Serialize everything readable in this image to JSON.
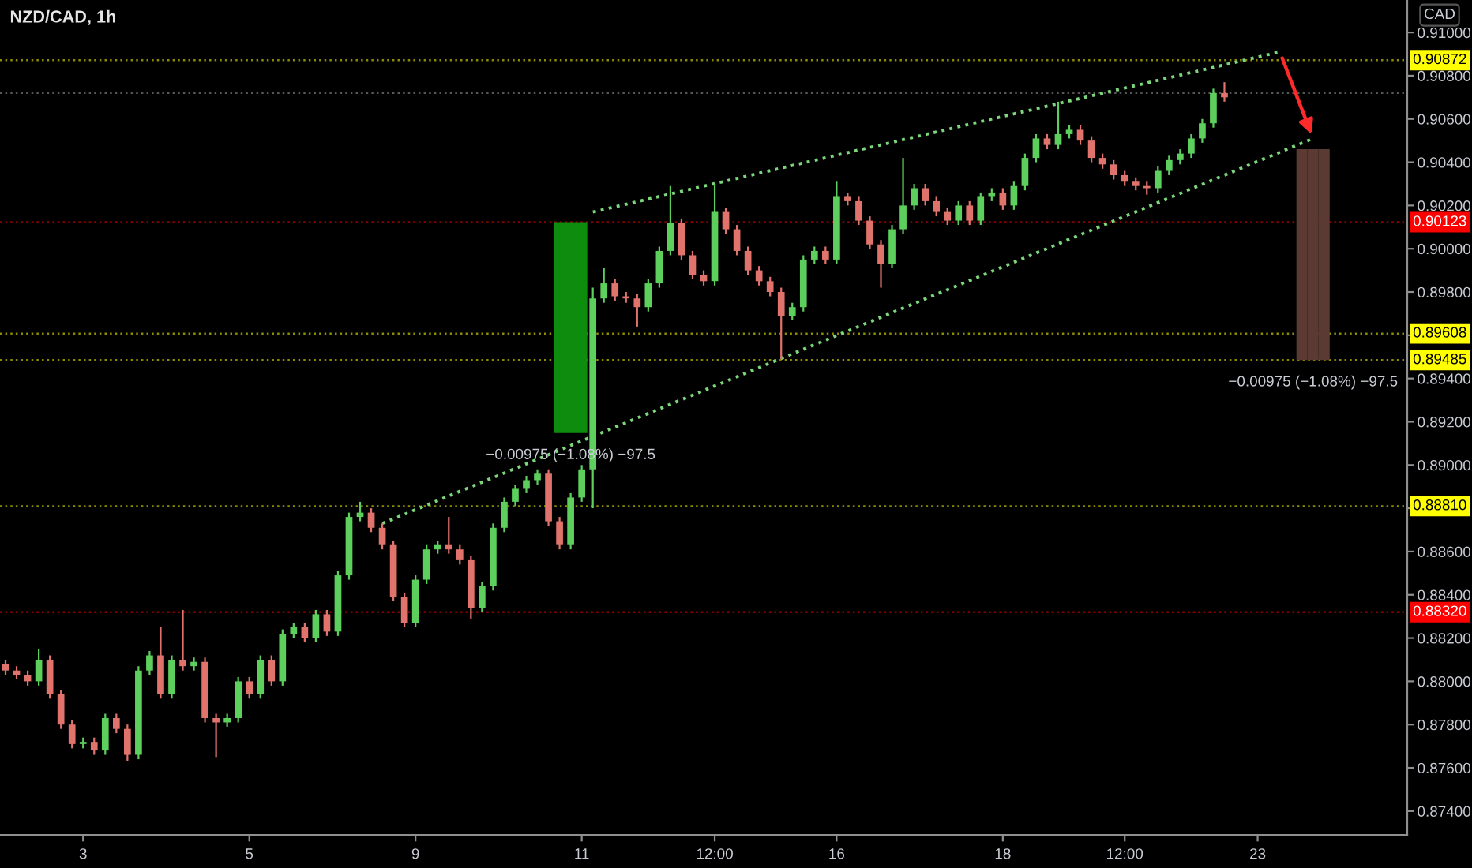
{
  "chart_data": {
    "type": "candlestick",
    "title": "NZD/CAD, 1h",
    "ylabel": "CAD",
    "categories": [
      null,
      null,
      null,
      null,
      null,
      null,
      null,
      "3",
      null,
      null,
      null,
      null,
      null,
      null,
      null,
      null,
      null,
      null,
      null,
      null,
      null,
      null,
      "5",
      null,
      null,
      null,
      null,
      null,
      null,
      null,
      null,
      null,
      null,
      null,
      null,
      null,
      null,
      "9",
      null,
      null,
      null,
      null,
      null,
      null,
      null,
      null,
      null,
      null,
      null,
      null,
      null,
      null,
      "11",
      null,
      null,
      null,
      null,
      null,
      null,
      null,
      null,
      null,
      null,
      null,
      "12:00",
      null,
      null,
      null,
      null,
      null,
      null,
      null,
      null,
      null,
      null,
      "16",
      null,
      null,
      null,
      null,
      null,
      null,
      null,
      null,
      null,
      null,
      null,
      null,
      null,
      null,
      "18",
      null,
      null,
      null,
      null,
      null,
      null,
      null,
      null,
      null,
      null,
      "12:00",
      null,
      null,
      null,
      null,
      null,
      null,
      null,
      null,
      null,
      null,
      null,
      "23",
      null,
      null,
      null,
      null,
      null,
      null,
      null,
      null,
      null,
      null,
      null,
      null,
      null
    ],
    "ylim": [
      0.8729,
      0.9115
    ],
    "yticks": [
      {
        "value": 0.874,
        "label": "0.87400"
      },
      {
        "value": 0.876,
        "label": "0.87600"
      },
      {
        "value": 0.878,
        "label": "0.87800"
      },
      {
        "value": 0.88,
        "label": "0.88000"
      },
      {
        "value": 0.882,
        "label": "0.88200"
      },
      {
        "value": 0.884,
        "label": "0.88400"
      },
      {
        "value": 0.886,
        "label": "0.88600"
      },
      {
        "value": 0.888,
        "label": null
      },
      {
        "value": 0.89,
        "label": "0.89000"
      },
      {
        "value": 0.892,
        "label": "0.89200"
      },
      {
        "value": 0.894,
        "label": "0.89400"
      },
      {
        "value": 0.896,
        "label": null
      },
      {
        "value": 0.898,
        "label": "0.89800"
      },
      {
        "value": 0.9,
        "label": "0.90000"
      },
      {
        "value": 0.902,
        "label": "0.90200"
      },
      {
        "value": 0.904,
        "label": "0.90400"
      },
      {
        "value": 0.906,
        "label": "0.90600"
      },
      {
        "value": 0.908,
        "label": "0.90800"
      },
      {
        "value": 0.91,
        "label": "0.91000"
      }
    ],
    "series": [
      {
        "ohlc": [
          [
            0.8808,
            0.881,
            0.8803,
            0.8805
          ],
          [
            0.8805,
            0.8807,
            0.8801,
            0.8803
          ],
          [
            0.8803,
            0.8805,
            0.8798,
            0.88
          ],
          [
            0.88,
            0.8815,
            0.8798,
            0.881
          ],
          [
            0.881,
            0.8812,
            0.8792,
            0.8794
          ],
          [
            0.8794,
            0.8796,
            0.8778,
            0.878
          ],
          [
            0.878,
            0.8782,
            0.8769,
            0.8771
          ],
          [
            0.8771,
            0.8774,
            0.8769,
            0.8772
          ],
          [
            0.8772,
            0.8774,
            0.8766,
            0.8768
          ],
          [
            0.8768,
            0.8785,
            0.8766,
            0.8783
          ],
          [
            0.8783,
            0.8785,
            0.8776,
            0.8778
          ],
          [
            0.8778,
            0.878,
            0.8763,
            0.8766
          ],
          [
            0.8766,
            0.8807,
            0.8764,
            0.8805
          ],
          [
            0.8805,
            0.8814,
            0.8803,
            0.8812
          ],
          [
            0.8812,
            0.8825,
            0.8792,
            0.8794
          ],
          [
            0.8794,
            0.8812,
            0.8792,
            0.881
          ],
          [
            0.881,
            0.8833,
            0.8805,
            0.8807
          ],
          [
            0.8807,
            0.8811,
            0.8805,
            0.8809
          ],
          [
            0.8809,
            0.8811,
            0.8781,
            0.8783
          ],
          [
            0.8783,
            0.8785,
            0.8765,
            0.8781
          ],
          [
            0.8781,
            0.8785,
            0.8779,
            0.8783
          ],
          [
            0.8783,
            0.8802,
            0.8781,
            0.88
          ],
          [
            0.88,
            0.8802,
            0.8792,
            0.8794
          ],
          [
            0.8794,
            0.8812,
            0.8792,
            0.881
          ],
          [
            0.881,
            0.8812,
            0.8798,
            0.88
          ],
          [
            0.88,
            0.8824,
            0.8798,
            0.8822
          ],
          [
            0.8822,
            0.8827,
            0.882,
            0.8825
          ],
          [
            0.8825,
            0.8827,
            0.8818,
            0.882
          ],
          [
            0.882,
            0.8833,
            0.8818,
            0.8831
          ],
          [
            0.8831,
            0.8833,
            0.8821,
            0.8823
          ],
          [
            0.8823,
            0.8851,
            0.8821,
            0.8849
          ],
          [
            0.8849,
            0.8878,
            0.8847,
            0.8876
          ],
          [
            0.8876,
            0.8883,
            0.8874,
            0.8878
          ],
          [
            0.8878,
            0.888,
            0.8869,
            0.8871
          ],
          [
            0.8871,
            0.8873,
            0.8861,
            0.8863
          ],
          [
            0.8863,
            0.8865,
            0.8837,
            0.8839
          ],
          [
            0.8839,
            0.8841,
            0.8825,
            0.8827
          ],
          [
            0.8827,
            0.8849,
            0.8825,
            0.8847
          ],
          [
            0.8847,
            0.8863,
            0.8845,
            0.8861
          ],
          [
            0.8861,
            0.8865,
            0.8859,
            0.8863
          ],
          [
            0.8863,
            0.8876,
            0.8859,
            0.8861
          ],
          [
            0.8861,
            0.8863,
            0.8854,
            0.8856
          ],
          [
            0.8856,
            0.8858,
            0.8829,
            0.8834
          ],
          [
            0.8834,
            0.8846,
            0.8832,
            0.8844
          ],
          [
            0.8844,
            0.8873,
            0.8842,
            0.8871
          ],
          [
            0.8871,
            0.8885,
            0.8869,
            0.8883
          ],
          [
            0.8883,
            0.8891,
            0.8881,
            0.8889
          ],
          [
            0.8889,
            0.8895,
            0.8887,
            0.8893
          ],
          [
            0.8893,
            0.8898,
            0.8891,
            0.8896
          ],
          [
            0.8896,
            0.8898,
            0.8872,
            0.8874
          ],
          [
            0.8874,
            0.8876,
            0.8861,
            0.8863
          ],
          [
            0.8863,
            0.8887,
            0.8861,
            0.8885
          ],
          [
            0.8885,
            0.89,
            0.8883,
            0.8898
          ],
          [
            0.8898,
            0.8982,
            0.888,
            0.8977
          ],
          [
            0.8977,
            0.8991,
            0.8975,
            0.8984
          ],
          [
            0.8984,
            0.8986,
            0.8976,
            0.8978
          ],
          [
            0.8978,
            0.898,
            0.8975,
            0.8977
          ],
          [
            0.8977,
            0.8979,
            0.8964,
            0.8973
          ],
          [
            0.8973,
            0.8986,
            0.8971,
            0.8984
          ],
          [
            0.8984,
            0.9001,
            0.8982,
            0.8999
          ],
          [
            0.8999,
            0.9029,
            0.8997,
            0.9012
          ],
          [
            0.9012,
            0.9014,
            0.8995,
            0.8997
          ],
          [
            0.8997,
            0.8999,
            0.8986,
            0.8988
          ],
          [
            0.8988,
            0.899,
            0.8983,
            0.8985
          ],
          [
            0.8985,
            0.903,
            0.8983,
            0.9017
          ],
          [
            0.9017,
            0.9019,
            0.9007,
            0.9009
          ],
          [
            0.9009,
            0.9011,
            0.8997,
            0.8999
          ],
          [
            0.8999,
            0.9001,
            0.8988,
            0.899
          ],
          [
            0.899,
            0.8992,
            0.8983,
            0.8985
          ],
          [
            0.8985,
            0.8987,
            0.8978,
            0.898
          ],
          [
            0.898,
            0.8982,
            0.8949,
            0.8969
          ],
          [
            0.8969,
            0.8975,
            0.8967,
            0.8973
          ],
          [
            0.8973,
            0.8997,
            0.8971,
            0.8995
          ],
          [
            0.8995,
            0.9001,
            0.8993,
            0.8999
          ],
          [
            0.8999,
            0.9001,
            0.8993,
            0.8995
          ],
          [
            0.8995,
            0.9031,
            0.8993,
            0.9024
          ],
          [
            0.9024,
            0.9026,
            0.902,
            0.9022
          ],
          [
            0.9022,
            0.9024,
            0.9011,
            0.9013
          ],
          [
            0.9013,
            0.9015,
            0.9,
            0.9002
          ],
          [
            0.9002,
            0.9004,
            0.8982,
            0.8993
          ],
          [
            0.8993,
            0.9011,
            0.8991,
            0.9009
          ],
          [
            0.9009,
            0.9042,
            0.9007,
            0.902
          ],
          [
            0.902,
            0.903,
            0.9018,
            0.9028
          ],
          [
            0.9028,
            0.903,
            0.902,
            0.9022
          ],
          [
            0.9022,
            0.9024,
            0.9015,
            0.9017
          ],
          [
            0.9017,
            0.9019,
            0.9011,
            0.9013
          ],
          [
            0.9013,
            0.9022,
            0.9011,
            0.902
          ],
          [
            0.902,
            0.9022,
            0.9011,
            0.9013
          ],
          [
            0.9013,
            0.9026,
            0.9011,
            0.9024
          ],
          [
            0.9024,
            0.9028,
            0.9022,
            0.9026
          ],
          [
            0.9026,
            0.9028,
            0.9018,
            0.902
          ],
          [
            0.902,
            0.9031,
            0.9018,
            0.9029
          ],
          [
            0.9029,
            0.9044,
            0.9027,
            0.9042
          ],
          [
            0.9042,
            0.9053,
            0.904,
            0.9051
          ],
          [
            0.9051,
            0.9053,
            0.9046,
            0.9048
          ],
          [
            0.9048,
            0.9068,
            0.9046,
            0.9053
          ],
          [
            0.9053,
            0.9057,
            0.9051,
            0.9055
          ],
          [
            0.9055,
            0.9057,
            0.9048,
            0.905
          ],
          [
            0.905,
            0.9052,
            0.904,
            0.9042
          ],
          [
            0.9042,
            0.9044,
            0.9037,
            0.9039
          ],
          [
            0.9039,
            0.9041,
            0.9032,
            0.9034
          ],
          [
            0.9034,
            0.9036,
            0.9029,
            0.9031
          ],
          [
            0.9031,
            0.9033,
            0.9027,
            0.9029
          ],
          [
            0.9029,
            0.9031,
            0.9025,
            0.9028
          ],
          [
            0.9028,
            0.9038,
            0.9026,
            0.9036
          ],
          [
            0.9036,
            0.9043,
            0.9034,
            0.9041
          ],
          [
            0.9041,
            0.9046,
            0.9039,
            0.9044
          ],
          [
            0.9044,
            0.9053,
            0.9042,
            0.9051
          ],
          [
            0.9051,
            0.906,
            0.9049,
            0.9058
          ],
          [
            0.9058,
            0.9074,
            0.9056,
            0.9072
          ],
          [
            0.9072,
            0.9077,
            0.9068,
            0.907
          ],
          null,
          null,
          null,
          null,
          null,
          null,
          null,
          null,
          null,
          null,
          null,
          null,
          null,
          null,
          null,
          null
        ],
        "colors": [
          "#e0736b",
          "#e0736b",
          "#e0736b",
          "#5ccf5c",
          "#e0736b",
          "#e0736b",
          "#e0736b",
          "#5ccf5c",
          "#e0736b",
          "#5ccf5c",
          "#e0736b",
          "#e0736b",
          "#5ccf5c",
          "#5ccf5c",
          "#e0736b",
          "#5ccf5c",
          "#e0736b",
          "#5ccf5c",
          "#e0736b",
          "#e0736b",
          "#5ccf5c",
          "#5ccf5c",
          "#e0736b",
          "#5ccf5c",
          "#e0736b",
          "#5ccf5c",
          "#5ccf5c",
          "#e0736b",
          "#5ccf5c",
          "#e0736b",
          "#5ccf5c",
          "#5ccf5c",
          "#5ccf5c",
          "#e0736b",
          "#e0736b",
          "#e0736b",
          "#e0736b",
          "#5ccf5c",
          "#5ccf5c",
          "#5ccf5c",
          "#e0736b",
          "#e0736b",
          "#e0736b",
          "#5ccf5c",
          "#5ccf5c",
          "#5ccf5c",
          "#5ccf5c",
          "#5ccf5c",
          "#5ccf5c",
          "#e0736b",
          "#e0736b",
          "#5ccf5c",
          "#5ccf5c",
          "#5ccf5c",
          "#5ccf5c",
          "#e0736b",
          "#e0736b",
          "#e0736b",
          "#5ccf5c",
          "#5ccf5c",
          "#5ccf5c",
          "#e0736b",
          "#e0736b",
          "#e0736b",
          "#5ccf5c",
          "#e0736b",
          "#e0736b",
          "#e0736b",
          "#e0736b",
          "#e0736b",
          "#e0736b",
          "#5ccf5c",
          "#5ccf5c",
          "#5ccf5c",
          "#e0736b",
          "#5ccf5c",
          "#e0736b",
          "#e0736b",
          "#e0736b",
          "#e0736b",
          "#5ccf5c",
          "#5ccf5c",
          "#5ccf5c",
          "#e0736b",
          "#e0736b",
          "#e0736b",
          "#5ccf5c",
          "#e0736b",
          "#5ccf5c",
          "#5ccf5c",
          "#e0736b",
          "#5ccf5c",
          "#5ccf5c",
          "#5ccf5c",
          "#e0736b",
          "#5ccf5c",
          "#5ccf5c",
          "#e0736b",
          "#e0736b",
          "#e0736b",
          "#e0736b",
          "#e0736b",
          "#e0736b",
          "#e0736b",
          "#5ccf5c",
          "#5ccf5c",
          "#5ccf5c",
          "#5ccf5c",
          "#5ccf5c",
          "#5ccf5c",
          "#e0736b",
          null,
          null,
          null,
          null,
          null,
          null,
          null,
          null,
          null,
          null,
          null,
          null,
          null,
          null,
          null,
          null
        ]
      },
      {
        "type": "line",
        "color": "#7cd67c",
        "line_style": "dotted",
        "values": [
          null,
          null,
          null,
          null,
          null,
          null,
          null,
          null,
          null,
          null,
          null,
          null,
          null,
          null,
          null,
          null,
          null,
          null,
          null,
          null,
          null,
          null,
          null,
          null,
          null,
          null,
          null,
          null,
          null,
          null,
          null,
          null,
          null,
          null,
          null,
          null,
          null,
          null,
          null,
          null,
          null,
          null,
          null,
          null,
          null,
          null,
          null,
          null,
          null,
          null,
          null,
          null,
          null,
          0.9017,
          null,
          null,
          null,
          null,
          null,
          null,
          null,
          null,
          null,
          null,
          null,
          null,
          null,
          null,
          null,
          null,
          null,
          null,
          null,
          null,
          null,
          null,
          null,
          null,
          null,
          null,
          null,
          null,
          null,
          null,
          null,
          null,
          null,
          null,
          null,
          null,
          null,
          null,
          null,
          null,
          null,
          null,
          null,
          null,
          null,
          null,
          null,
          null,
          null,
          null,
          null,
          null,
          null,
          null,
          null,
          null,
          null,
          null,
          null,
          null,
          null,
          0.9091,
          null,
          null,
          null,
          null,
          null,
          null,
          null,
          null,
          null,
          null,
          null
        ]
      },
      {
        "type": "line",
        "color": "#7cd67c",
        "line_style": "dotted",
        "values": [
          null,
          null,
          null,
          null,
          null,
          null,
          null,
          null,
          null,
          null,
          null,
          null,
          null,
          null,
          null,
          null,
          null,
          null,
          null,
          null,
          null,
          null,
          null,
          null,
          null,
          null,
          null,
          null,
          null,
          null,
          null,
          null,
          null,
          null,
          0.8873,
          null,
          null,
          null,
          null,
          null,
          null,
          null,
          null,
          null,
          null,
          null,
          null,
          null,
          null,
          null,
          null,
          null,
          null,
          null,
          null,
          null,
          null,
          null,
          null,
          null,
          null,
          null,
          null,
          null,
          null,
          null,
          null,
          null,
          null,
          null,
          null,
          null,
          null,
          null,
          null,
          null,
          null,
          null,
          null,
          null,
          null,
          null,
          null,
          null,
          null,
          null,
          null,
          null,
          null,
          null,
          null,
          null,
          null,
          null,
          null,
          null,
          null,
          null,
          null,
          null,
          null,
          null,
          null,
          null,
          null,
          null,
          null,
          null,
          null,
          null,
          null,
          null,
          null,
          null,
          null,
          null,
          null,
          null,
          0.9051,
          null,
          null,
          null,
          null,
          null,
          null,
          null,
          null
        ]
      },
      {
        "type": "bar",
        "color": "#0e8c0e",
        "values": [
          null,
          null,
          null,
          null,
          null,
          null,
          null,
          null,
          null,
          null,
          null,
          null,
          null,
          null,
          null,
          null,
          null,
          null,
          null,
          null,
          null,
          null,
          null,
          null,
          null,
          null,
          null,
          null,
          null,
          null,
          null,
          null,
          null,
          null,
          null,
          null,
          null,
          null,
          null,
          null,
          null,
          null,
          null,
          null,
          null,
          null,
          null,
          null,
          null,
          null,
          -0.00975,
          -0.00975,
          -0.00975,
          null,
          null,
          null,
          null,
          null,
          null,
          null,
          null,
          null,
          null,
          null,
          null,
          null,
          null,
          null,
          null,
          null,
          null,
          null,
          null,
          null,
          null,
          null,
          null,
          null,
          null,
          null,
          null,
          null,
          null,
          null,
          null,
          null,
          null,
          null,
          null,
          null,
          null,
          null,
          null,
          null,
          null,
          null,
          null,
          null,
          null,
          null,
          null,
          null,
          null,
          null,
          null,
          null,
          null,
          null,
          null,
          null,
          null,
          null,
          null,
          null,
          null,
          null,
          null,
          null,
          null,
          null,
          null,
          null,
          null,
          null,
          null,
          null,
          null
        ],
        "base": [
          null,
          null,
          null,
          null,
          null,
          null,
          null,
          null,
          null,
          null,
          null,
          null,
          null,
          null,
          null,
          null,
          null,
          null,
          null,
          null,
          null,
          null,
          null,
          null,
          null,
          null,
          null,
          null,
          null,
          null,
          null,
          null,
          null,
          null,
          null,
          null,
          null,
          null,
          null,
          null,
          null,
          null,
          null,
          null,
          null,
          null,
          null,
          null,
          null,
          null,
          0.90123,
          0.90123,
          0.90123,
          null,
          null,
          null,
          null,
          null,
          null,
          null,
          null,
          null,
          null,
          null,
          null,
          null,
          null,
          null,
          null,
          null,
          null,
          null,
          null,
          null,
          null,
          null,
          null,
          null,
          null,
          null,
          null,
          null,
          null,
          null,
          null,
          null,
          null,
          null,
          null,
          null,
          null,
          null,
          null,
          null,
          null,
          null,
          null,
          null,
          null,
          null,
          null,
          null,
          null,
          null,
          null,
          null,
          null,
          null,
          null,
          null,
          null,
          null,
          null,
          null,
          null,
          null,
          null,
          null,
          null,
          null,
          null,
          null,
          null,
          null,
          null,
          null,
          null
        ],
        "value_labels": [
          null,
          null,
          null,
          null,
          null,
          null,
          null,
          null,
          null,
          null,
          null,
          null,
          null,
          null,
          null,
          null,
          null,
          null,
          null,
          null,
          null,
          null,
          null,
          null,
          null,
          null,
          null,
          null,
          null,
          null,
          null,
          null,
          null,
          null,
          null,
          null,
          null,
          null,
          null,
          null,
          null,
          null,
          null,
          null,
          null,
          null,
          null,
          null,
          null,
          null,
          null,
          "−0.00975 (−1.08%) −97.5",
          null,
          null,
          null,
          null,
          null,
          null,
          null,
          null,
          null,
          null,
          null,
          null,
          null,
          null,
          null,
          null,
          null,
          null,
          null,
          null,
          null,
          null,
          null,
          null,
          null,
          null,
          null,
          null,
          null,
          null,
          null,
          null,
          null,
          null,
          null,
          null,
          null,
          null,
          null,
          null,
          null,
          null,
          null,
          null,
          null,
          null,
          null,
          null,
          null,
          null,
          null,
          null,
          null,
          null,
          null,
          null,
          null,
          null,
          null,
          null,
          null,
          null,
          null,
          null,
          null,
          null,
          null,
          null,
          null,
          null,
          null,
          null,
          null,
          null,
          null
        ]
      },
      {
        "type": "bar",
        "color": "#5a3a33",
        "values": [
          null,
          null,
          null,
          null,
          null,
          null,
          null,
          null,
          null,
          null,
          null,
          null,
          null,
          null,
          null,
          null,
          null,
          null,
          null,
          null,
          null,
          null,
          null,
          null,
          null,
          null,
          null,
          null,
          null,
          null,
          null,
          null,
          null,
          null,
          null,
          null,
          null,
          null,
          null,
          null,
          null,
          null,
          null,
          null,
          null,
          null,
          null,
          null,
          null,
          null,
          null,
          null,
          null,
          null,
          null,
          null,
          null,
          null,
          null,
          null,
          null,
          null,
          null,
          null,
          null,
          null,
          null,
          null,
          null,
          null,
          null,
          null,
          null,
          null,
          null,
          null,
          null,
          null,
          null,
          null,
          null,
          null,
          null,
          null,
          null,
          null,
          null,
          null,
          null,
          null,
          null,
          null,
          null,
          null,
          null,
          null,
          null,
          null,
          null,
          null,
          null,
          null,
          null,
          null,
          null,
          null,
          null,
          null,
          null,
          null,
          null,
          null,
          null,
          null,
          null,
          null,
          null,
          -0.00975,
          -0.00975,
          -0.00975,
          null,
          null,
          null,
          null,
          null,
          null,
          null
        ],
        "base": [
          null,
          null,
          null,
          null,
          null,
          null,
          null,
          null,
          null,
          null,
          null,
          null,
          null,
          null,
          null,
          null,
          null,
          null,
          null,
          null,
          null,
          null,
          null,
          null,
          null,
          null,
          null,
          null,
          null,
          null,
          null,
          null,
          null,
          null,
          null,
          null,
          null,
          null,
          null,
          null,
          null,
          null,
          null,
          null,
          null,
          null,
          null,
          null,
          null,
          null,
          null,
          null,
          null,
          null,
          null,
          null,
          null,
          null,
          null,
          null,
          null,
          null,
          null,
          null,
          null,
          null,
          null,
          null,
          null,
          null,
          null,
          null,
          null,
          null,
          null,
          null,
          null,
          null,
          null,
          null,
          null,
          null,
          null,
          null,
          null,
          null,
          null,
          null,
          null,
          null,
          null,
          null,
          null,
          null,
          null,
          null,
          null,
          null,
          null,
          null,
          null,
          null,
          null,
          null,
          null,
          null,
          null,
          null,
          null,
          null,
          null,
          null,
          null,
          null,
          null,
          null,
          null,
          0.9046,
          0.9046,
          0.9046,
          null,
          null,
          null,
          null,
          null,
          null,
          null
        ],
        "value_labels": [
          null,
          null,
          null,
          null,
          null,
          null,
          null,
          null,
          null,
          null,
          null,
          null,
          null,
          null,
          null,
          null,
          null,
          null,
          null,
          null,
          null,
          null,
          null,
          null,
          null,
          null,
          null,
          null,
          null,
          null,
          null,
          null,
          null,
          null,
          null,
          null,
          null,
          null,
          null,
          null,
          null,
          null,
          null,
          null,
          null,
          null,
          null,
          null,
          null,
          null,
          null,
          null,
          null,
          null,
          null,
          null,
          null,
          null,
          null,
          null,
          null,
          null,
          null,
          null,
          null,
          null,
          null,
          null,
          null,
          null,
          null,
          null,
          null,
          null,
          null,
          null,
          null,
          null,
          null,
          null,
          null,
          null,
          null,
          null,
          null,
          null,
          null,
          null,
          null,
          null,
          null,
          null,
          null,
          null,
          null,
          null,
          null,
          null,
          null,
          null,
          null,
          null,
          null,
          null,
          null,
          null,
          null,
          null,
          null,
          null,
          null,
          null,
          null,
          null,
          null,
          null,
          null,
          null,
          "−0.00975 (−1.08%) −97.5",
          null,
          null,
          null,
          null,
          null,
          null,
          null,
          null
        ]
      }
    ],
    "ref_lines": [
      {
        "axis": "y",
        "value": 0.90872,
        "label": "0.90872",
        "color": "#ffff00",
        "line_style": "dotted"
      },
      {
        "axis": "y",
        "value": 0.9072,
        "label": null,
        "color": "#9e9e9e",
        "line_style": "dotted"
      },
      {
        "axis": "y",
        "value": 0.90123,
        "label": "0.90123",
        "color": "#ff0000",
        "line_style": "dotted"
      },
      {
        "axis": "y",
        "value": 0.89608,
        "label": "0.89608",
        "color": "#ffff00",
        "line_style": "dotted"
      },
      {
        "axis": "y",
        "value": 0.89485,
        "label": "0.89485",
        "color": "#ffff00",
        "line_style": "dotted"
      },
      {
        "axis": "y",
        "value": 0.8881,
        "label": "0.88810",
        "color": "#ffff00",
        "line_style": "dotted"
      },
      {
        "axis": "y",
        "value": 0.8832,
        "label": "0.88320",
        "color": "#ff0000",
        "line_style": "dotted"
      }
    ]
  }
}
